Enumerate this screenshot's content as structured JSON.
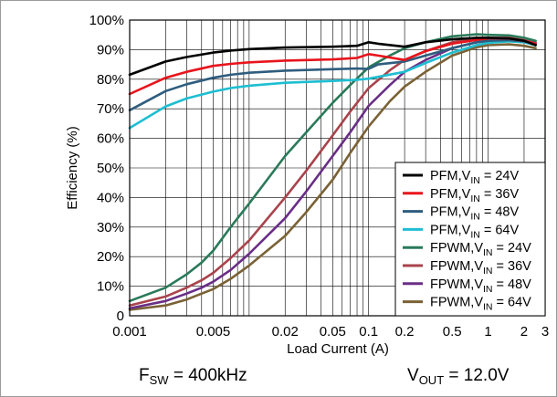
{
  "chart_data": {
    "type": "line",
    "xlabel": "Load Current (A)",
    "ylabel": "Efficiency (%)",
    "x_scale": "log",
    "xlim": [
      0.001,
      3
    ],
    "ylim": [
      0,
      100
    ],
    "grid": true,
    "legend_position": "bottom-right",
    "x_ticks": [
      {
        "value": 0.001,
        "label": "0.001"
      },
      {
        "value": 0.005,
        "label": "0.005"
      },
      {
        "value": 0.02,
        "label": "0.02"
      },
      {
        "value": 0.05,
        "label": "0.05"
      },
      {
        "value": 0.1,
        "label": "0.1"
      },
      {
        "value": 0.2,
        "label": "0.2"
      },
      {
        "value": 0.5,
        "label": "0.5"
      },
      {
        "value": 1,
        "label": "1"
      },
      {
        "value": 2,
        "label": "2"
      },
      {
        "value": 3,
        "label": "3"
      }
    ],
    "y_ticks": [
      {
        "value": 0,
        "label": "0"
      },
      {
        "value": 10,
        "label": "10%"
      },
      {
        "value": 20,
        "label": "20%"
      },
      {
        "value": 30,
        "label": "30%"
      },
      {
        "value": 40,
        "label": "40%"
      },
      {
        "value": 50,
        "label": "50%"
      },
      {
        "value": 60,
        "label": "60%"
      },
      {
        "value": 70,
        "label": "70%"
      },
      {
        "value": 80,
        "label": "80%"
      },
      {
        "value": 90,
        "label": "90%"
      },
      {
        "value": 100,
        "label": "100%"
      }
    ],
    "series": [
      {
        "name": "PFM,VIN = 24V",
        "mode": "PFM",
        "vin": "24V",
        "color": "#000000",
        "x": [
          0.001,
          0.002,
          0.003,
          0.005,
          0.007,
          0.01,
          0.02,
          0.05,
          0.08,
          0.1,
          0.12,
          0.2,
          0.3,
          0.5,
          0.8,
          1,
          1.5,
          2,
          2.5
        ],
        "y": [
          81.5,
          86,
          87.5,
          89,
          89.7,
          90.2,
          90.7,
          91,
          91.3,
          92.5,
          92,
          91,
          92.5,
          93.5,
          94,
          94,
          93.8,
          93,
          91.5
        ]
      },
      {
        "name": "PFM,VIN = 36V",
        "mode": "PFM",
        "vin": "36V",
        "color": "#e8141c",
        "x": [
          0.001,
          0.002,
          0.003,
          0.005,
          0.007,
          0.01,
          0.02,
          0.05,
          0.08,
          0.1,
          0.12,
          0.2,
          0.3,
          0.5,
          0.8,
          1,
          1.5,
          2,
          2.5
        ],
        "y": [
          75,
          80.5,
          82.5,
          84.5,
          85.2,
          85.7,
          86.3,
          86.7,
          87.2,
          88.5,
          88,
          86.5,
          89.5,
          92,
          93.3,
          93.8,
          93.8,
          93,
          92
        ]
      },
      {
        "name": "PFM,VIN = 48V",
        "mode": "PFM",
        "vin": "48V",
        "color": "#2f5d7e",
        "x": [
          0.001,
          0.002,
          0.003,
          0.005,
          0.007,
          0.01,
          0.02,
          0.05,
          0.08,
          0.1,
          0.12,
          0.2,
          0.3,
          0.5,
          0.8,
          1,
          1.5,
          2,
          2.5
        ],
        "y": [
          69.5,
          76,
          78.3,
          80.5,
          81.5,
          82.2,
          82.9,
          83.4,
          83.6,
          83.5,
          85,
          86,
          88,
          90.5,
          92.5,
          93,
          93.2,
          92.8,
          92
        ]
      },
      {
        "name": "PFM,VIN = 64V",
        "mode": "PFM",
        "vin": "64V",
        "color": "#1ebed2",
        "x": [
          0.001,
          0.002,
          0.003,
          0.005,
          0.007,
          0.01,
          0.02,
          0.05,
          0.08,
          0.1,
          0.12,
          0.2,
          0.3,
          0.5,
          0.8,
          1,
          1.5,
          2,
          2.5
        ],
        "y": [
          63.5,
          70.8,
          73.5,
          75.8,
          77,
          77.8,
          78.8,
          79.4,
          79.8,
          80.2,
          80.8,
          82.5,
          85.5,
          89,
          91.5,
          92.3,
          92.8,
          92.5,
          91.5
        ]
      },
      {
        "name": "FPWM,VIN = 24V",
        "mode": "FPWM",
        "vin": "24V",
        "color": "#2a7a5a",
        "x": [
          0.001,
          0.002,
          0.003,
          0.004,
          0.005,
          0.007,
          0.01,
          0.02,
          0.03,
          0.05,
          0.07,
          0.1,
          0.15,
          0.2,
          0.3,
          0.5,
          0.8,
          1,
          1.5,
          2,
          2.5
        ],
        "y": [
          5,
          9.5,
          14,
          18,
          22,
          30,
          38,
          54,
          62,
          72,
          78,
          84,
          88,
          90.5,
          92.5,
          94.5,
          95.2,
          95,
          94.8,
          94,
          93
        ]
      },
      {
        "name": "FPWM,VIN = 36V",
        "mode": "FPWM",
        "vin": "36V",
        "color": "#a9434c",
        "x": [
          0.001,
          0.002,
          0.003,
          0.004,
          0.005,
          0.007,
          0.01,
          0.02,
          0.03,
          0.05,
          0.07,
          0.1,
          0.15,
          0.2,
          0.3,
          0.5,
          0.8,
          1,
          1.5,
          2,
          2.5
        ],
        "y": [
          3.5,
          6.5,
          9.5,
          12,
          14.5,
          19.5,
          25.5,
          40,
          49,
          61,
          69,
          77,
          83,
          86.5,
          89.5,
          92.5,
          94,
          94,
          94,
          93.2,
          92.5
        ]
      },
      {
        "name": "FPWM,VIN = 48V",
        "mode": "FPWM",
        "vin": "48V",
        "color": "#6a2e86",
        "x": [
          0.001,
          0.002,
          0.003,
          0.004,
          0.005,
          0.007,
          0.01,
          0.02,
          0.03,
          0.05,
          0.07,
          0.1,
          0.15,
          0.2,
          0.3,
          0.5,
          0.8,
          1,
          1.5,
          2,
          2.5
        ],
        "y": [
          2.5,
          5,
          7.5,
          9.5,
          11.5,
          15.5,
          21,
          33,
          42,
          54,
          62,
          71,
          78,
          82.5,
          86.5,
          90.5,
          92.5,
          93,
          93,
          92.5,
          91.8
        ]
      },
      {
        "name": "FPWM,VIN = 64V",
        "mode": "FPWM",
        "vin": "64V",
        "color": "#7a6236",
        "x": [
          0.001,
          0.002,
          0.003,
          0.004,
          0.005,
          0.007,
          0.01,
          0.02,
          0.03,
          0.05,
          0.07,
          0.1,
          0.15,
          0.2,
          0.3,
          0.5,
          0.8,
          1,
          1.5,
          2,
          2.5
        ],
        "y": [
          2,
          3.5,
          5.5,
          7.5,
          9,
          12.5,
          17,
          27,
          35,
          46,
          55,
          64,
          72.5,
          77.5,
          82.5,
          88,
          90.8,
          91.5,
          91.8,
          91.3,
          90.5
        ]
      }
    ]
  },
  "notes": {
    "fsw_label": "F",
    "fsw_sub": "SW",
    "fsw_value": " = 400kHz",
    "vout_label": "V",
    "vout_sub": "OUT",
    "vout_value": " = 12.0V"
  }
}
